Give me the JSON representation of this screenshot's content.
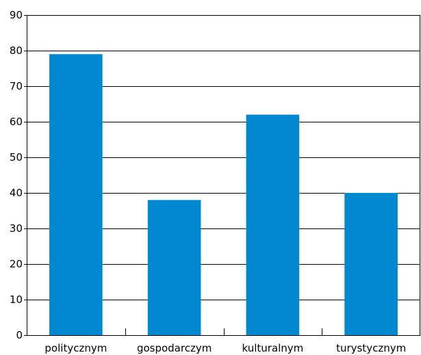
{
  "chart_data": {
    "type": "bar",
    "title": "",
    "xlabel": "",
    "ylabel": "",
    "categories": [
      "politycznym",
      "gospodarczym",
      "kulturalnym",
      "turystycznym"
    ],
    "values": [
      79,
      38,
      62,
      40
    ],
    "ylim": [
      0,
      90
    ],
    "yticks": [
      0,
      10,
      20,
      30,
      40,
      50,
      60,
      70,
      80,
      90
    ],
    "ytick_labels": [
      "0",
      "10",
      "20",
      "30",
      "40",
      "50",
      "60",
      "70",
      "80",
      "90"
    ],
    "grid": true,
    "legend": "none",
    "colors": {
      "bar": "#0088d1",
      "grid": "#000000",
      "axis": "#000000"
    }
  }
}
